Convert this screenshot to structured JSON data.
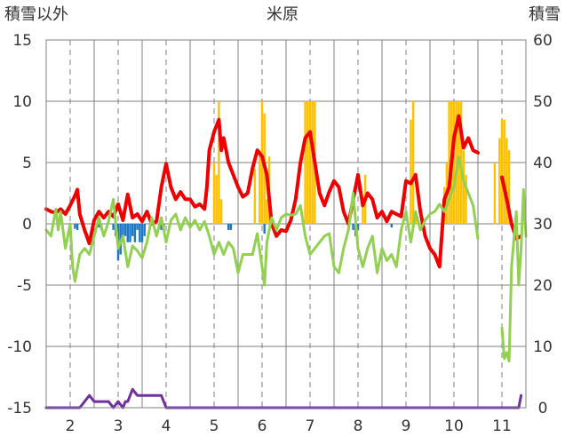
{
  "chart_data": {
    "type": "line",
    "title": "米原",
    "left_axis_label": "積雪以外",
    "right_axis_label": "積雪",
    "ylim_left": [
      -15,
      15
    ],
    "ylim_right": [
      0,
      60
    ],
    "yticks_left": [
      "15",
      "10",
      "5",
      "0",
      "-5",
      "-10",
      "-15"
    ],
    "yticks_right": [
      "60",
      "50",
      "40",
      "30",
      "20",
      "10",
      "0"
    ],
    "x_range": [
      1.5,
      11.5
    ],
    "xticks": [
      "2",
      "3",
      "4",
      "5",
      "6",
      "7",
      "8",
      "9",
      "10",
      "11"
    ],
    "grid": true,
    "colors": {
      "red_line": "#ee0000",
      "green_line": "#92d050",
      "purple_line": "#7030a0",
      "yellow_bar": "#ffc000",
      "blue_bar": "#1f77c4",
      "grid": "#808080"
    },
    "series": [
      {
        "color": "red",
        "axis": "left",
        "points": [
          [
            1.5,
            1.2
          ],
          [
            1.6,
            1.0
          ],
          [
            1.7,
            0.9
          ],
          [
            1.8,
            1.2
          ],
          [
            1.9,
            0.8
          ],
          [
            2.0,
            1.5
          ],
          [
            2.1,
            2.3
          ],
          [
            2.15,
            2.8
          ],
          [
            2.2,
            0.8
          ],
          [
            2.3,
            -0.5
          ],
          [
            2.4,
            -1.6
          ],
          [
            2.5,
            0.3
          ],
          [
            2.6,
            1.0
          ],
          [
            2.7,
            0.5
          ],
          [
            2.8,
            1.0
          ],
          [
            2.9,
            0.6
          ],
          [
            3.0,
            1.6
          ],
          [
            3.1,
            0.3
          ],
          [
            3.2,
            2.4
          ],
          [
            3.3,
            0.5
          ],
          [
            3.4,
            0.8
          ],
          [
            3.5,
            0.2
          ],
          [
            3.6,
            1.0
          ],
          [
            3.7,
            0.0
          ],
          [
            3.8,
            0.2
          ],
          [
            3.9,
            3.0
          ],
          [
            4.0,
            4.9
          ],
          [
            4.1,
            3.0
          ],
          [
            4.2,
            2.0
          ],
          [
            4.3,
            2.6
          ],
          [
            4.4,
            2.0
          ],
          [
            4.5,
            2.0
          ],
          [
            4.6,
            1.4
          ],
          [
            4.7,
            1.6
          ],
          [
            4.8,
            1.2
          ],
          [
            4.85,
            3.0
          ],
          [
            4.9,
            6.0
          ],
          [
            5.0,
            7.5
          ],
          [
            5.1,
            8.5
          ],
          [
            5.15,
            6.0
          ],
          [
            5.2,
            7.0
          ],
          [
            5.3,
            5.0
          ],
          [
            5.4,
            4.0
          ],
          [
            5.5,
            3.0
          ],
          [
            5.6,
            2.2
          ],
          [
            5.7,
            2.5
          ],
          [
            5.8,
            4.5
          ],
          [
            5.9,
            6.0
          ],
          [
            6.0,
            5.5
          ],
          [
            6.1,
            4.0
          ],
          [
            6.2,
            0.0
          ],
          [
            6.3,
            -1.0
          ],
          [
            6.4,
            -0.5
          ],
          [
            6.5,
            -0.6
          ],
          [
            6.6,
            0.3
          ],
          [
            6.7,
            2.0
          ],
          [
            6.8,
            5.0
          ],
          [
            6.9,
            7.0
          ],
          [
            7.0,
            7.5
          ],
          [
            7.1,
            5.0
          ],
          [
            7.2,
            2.5
          ],
          [
            7.3,
            1.5
          ],
          [
            7.4,
            2.6
          ],
          [
            7.5,
            3.5
          ],
          [
            7.6,
            3.0
          ],
          [
            7.7,
            1.0
          ],
          [
            7.8,
            0.0
          ],
          [
            7.9,
            2.0
          ],
          [
            8.0,
            4.0
          ],
          [
            8.1,
            1.5
          ],
          [
            8.2,
            2.5
          ],
          [
            8.3,
            2.0
          ],
          [
            8.4,
            0.5
          ],
          [
            8.5,
            1.0
          ],
          [
            8.6,
            0.2
          ],
          [
            8.7,
            1.0
          ],
          [
            8.8,
            0.8
          ],
          [
            8.9,
            0.6
          ],
          [
            9.0,
            3.5
          ],
          [
            9.1,
            3.3
          ],
          [
            9.2,
            4.0
          ],
          [
            9.3,
            1.0
          ],
          [
            9.4,
            -1.0
          ],
          [
            9.5,
            -2.0
          ],
          [
            9.6,
            -2.5
          ],
          [
            9.7,
            -3.5
          ],
          [
            9.8,
            2.0
          ],
          [
            9.9,
            3.0
          ],
          [
            10.0,
            7.0
          ],
          [
            10.1,
            8.8
          ],
          [
            10.2,
            6.2
          ],
          [
            10.3,
            7.0
          ],
          [
            10.4,
            6.0
          ],
          [
            10.5,
            5.8
          ]
        ]
      },
      {
        "color": "red",
        "axis": "left",
        "points": [
          [
            11.0,
            3.8
          ],
          [
            11.1,
            2.0
          ],
          [
            11.2,
            0.0
          ],
          [
            11.3,
            -1.2
          ],
          [
            11.4,
            -1.0
          ]
        ]
      },
      {
        "color": "green",
        "axis": "left",
        "points": [
          [
            1.5,
            -0.5
          ],
          [
            1.6,
            -1.0
          ],
          [
            1.7,
            1.2
          ],
          [
            1.75,
            -0.5
          ],
          [
            1.8,
            1.0
          ],
          [
            1.9,
            -2.0
          ],
          [
            2.0,
            0.0
          ],
          [
            2.05,
            -3.5
          ],
          [
            2.1,
            -4.7
          ],
          [
            2.2,
            -2.5
          ],
          [
            2.3,
            -2.0
          ],
          [
            2.4,
            -2.5
          ],
          [
            2.5,
            -1.0
          ],
          [
            2.6,
            0.5
          ],
          [
            2.7,
            -1.0
          ],
          [
            2.8,
            0.2
          ],
          [
            2.9,
            2.0
          ],
          [
            3.0,
            -2.0
          ],
          [
            3.1,
            -1.0
          ],
          [
            3.2,
            -3.5
          ],
          [
            3.3,
            -1.8
          ],
          [
            3.4,
            -2.2
          ],
          [
            3.5,
            -2.8
          ],
          [
            3.6,
            -1.5
          ],
          [
            3.7,
            0.5
          ],
          [
            3.8,
            -1.0
          ],
          [
            3.9,
            0.5
          ],
          [
            4.0,
            -1.5
          ],
          [
            4.1,
            0.3
          ],
          [
            4.2,
            0.8
          ],
          [
            4.3,
            -0.5
          ],
          [
            4.4,
            0.5
          ],
          [
            4.5,
            -0.3
          ],
          [
            4.6,
            0.3
          ],
          [
            4.7,
            -0.5
          ],
          [
            4.8,
            0.2
          ],
          [
            4.9,
            -1.0
          ],
          [
            5.0,
            -2.5
          ],
          [
            5.1,
            -1.5
          ],
          [
            5.2,
            -2.5
          ],
          [
            5.3,
            -1.5
          ],
          [
            5.4,
            -2.0
          ],
          [
            5.5,
            -4.0
          ],
          [
            5.6,
            -2.5
          ],
          [
            5.7,
            -2.5
          ],
          [
            5.8,
            -2.5
          ],
          [
            5.9,
            -0.8
          ],
          [
            6.0,
            -3.5
          ],
          [
            6.05,
            -5.0
          ],
          [
            6.1,
            -1.5
          ],
          [
            6.2,
            0.5
          ],
          [
            6.3,
            -0.5
          ],
          [
            6.4,
            0.5
          ],
          [
            6.5,
            0.8
          ],
          [
            6.6,
            0.7
          ],
          [
            6.7,
            0.8
          ],
          [
            6.8,
            1.5
          ],
          [
            6.9,
            -1.0
          ],
          [
            7.0,
            -2.5
          ],
          [
            7.1,
            -2.0
          ],
          [
            7.2,
            -1.5
          ],
          [
            7.3,
            -1.0
          ],
          [
            7.4,
            -0.8
          ],
          [
            7.5,
            -3.5
          ],
          [
            7.6,
            -4.0
          ],
          [
            7.7,
            -2.0
          ],
          [
            7.8,
            -0.5
          ],
          [
            7.9,
            2.5
          ],
          [
            8.0,
            -2.0
          ],
          [
            8.1,
            -3.5
          ],
          [
            8.2,
            -2.0
          ],
          [
            8.3,
            -1.0
          ],
          [
            8.4,
            -4.0
          ],
          [
            8.5,
            -2.0
          ],
          [
            8.6,
            -3.0
          ],
          [
            8.7,
            -2.5
          ],
          [
            8.8,
            -3.5
          ],
          [
            8.9,
            -0.5
          ],
          [
            9.0,
            1.0
          ],
          [
            9.1,
            -1.5
          ],
          [
            9.2,
            1.0
          ],
          [
            9.3,
            -0.5
          ],
          [
            9.4,
            0.3
          ],
          [
            9.5,
            0.8
          ],
          [
            9.6,
            1.0
          ],
          [
            9.7,
            1.6
          ],
          [
            9.8,
            1.0
          ],
          [
            9.9,
            2.0
          ],
          [
            10.0,
            3.0
          ],
          [
            10.1,
            5.5
          ],
          [
            10.2,
            3.5
          ],
          [
            10.3,
            2.5
          ],
          [
            10.4,
            1.5
          ],
          [
            10.5,
            -1.2
          ]
        ]
      },
      {
        "color": "green",
        "axis": "left",
        "points": [
          [
            11.0,
            -8.5
          ],
          [
            11.05,
            -11.0
          ],
          [
            11.1,
            -10.5
          ],
          [
            11.15,
            -11.2
          ],
          [
            11.2,
            -3.5
          ],
          [
            11.3,
            1.0
          ],
          [
            11.35,
            -5.0
          ],
          [
            11.4,
            -2.0
          ],
          [
            11.45,
            2.8
          ],
          [
            11.5,
            -1.0
          ]
        ]
      },
      {
        "color": "purple",
        "axis": "right",
        "points": [
          [
            1.5,
            0
          ],
          [
            2.2,
            0
          ],
          [
            2.4,
            2
          ],
          [
            2.5,
            1
          ],
          [
            2.8,
            1
          ],
          [
            2.9,
            0
          ],
          [
            3.0,
            1
          ],
          [
            3.1,
            0
          ],
          [
            3.15,
            1
          ],
          [
            3.2,
            1
          ],
          [
            3.3,
            3
          ],
          [
            3.4,
            2
          ],
          [
            3.5,
            2
          ],
          [
            3.9,
            2
          ],
          [
            4.0,
            0
          ],
          [
            11.35,
            0
          ],
          [
            11.4,
            2
          ]
        ]
      }
    ],
    "bars_right": [
      {
        "color": "yellow",
        "x": [
          5.0,
          5.05,
          5.1,
          5.15,
          5.85,
          5.95,
          6.0,
          6.05,
          6.1,
          6.15,
          6.9,
          6.95,
          7.0,
          7.05,
          7.1,
          8.1,
          8.15,
          9.1,
          9.15,
          9.2,
          9.8,
          9.85,
          9.9,
          9.95,
          10.0,
          10.05,
          10.1,
          10.15,
          10.2,
          10.25,
          10.85,
          10.95,
          11.0,
          11.05,
          11.1,
          11.15
        ],
        "values": [
          40,
          38,
          50,
          34,
          39,
          42,
          50,
          48,
          34,
          41,
          50,
          50,
          50,
          50,
          50,
          34,
          38,
          47,
          50,
          32,
          36,
          40,
          50,
          50,
          50,
          50,
          50,
          50,
          42,
          38,
          40,
          44,
          47,
          47,
          44,
          42
        ]
      },
      {
        "color": "blue",
        "x": [
          2.1,
          2.15,
          2.6,
          2.65,
          2.9,
          2.95,
          3.0,
          3.05,
          3.1,
          3.15,
          3.2,
          3.25,
          3.3,
          3.35,
          3.4,
          3.45,
          3.5,
          3.55,
          3.9,
          3.95,
          5.3,
          5.35,
          6.05,
          7.9,
          7.95,
          8.0,
          8.7
        ],
        "values": [
          -0.4,
          -0.5,
          -0.3,
          -0.5,
          -0.5,
          -1.0,
          -3.0,
          -2.5,
          -1.5,
          -1.0,
          -1.5,
          -1.5,
          -1.0,
          -1.5,
          -0.5,
          -1.5,
          -1.5,
          -1.0,
          -0.5,
          -0.5,
          -0.5,
          -0.5,
          -0.8,
          -0.5,
          -1.0,
          -0.5,
          -0.3
        ]
      }
    ]
  }
}
